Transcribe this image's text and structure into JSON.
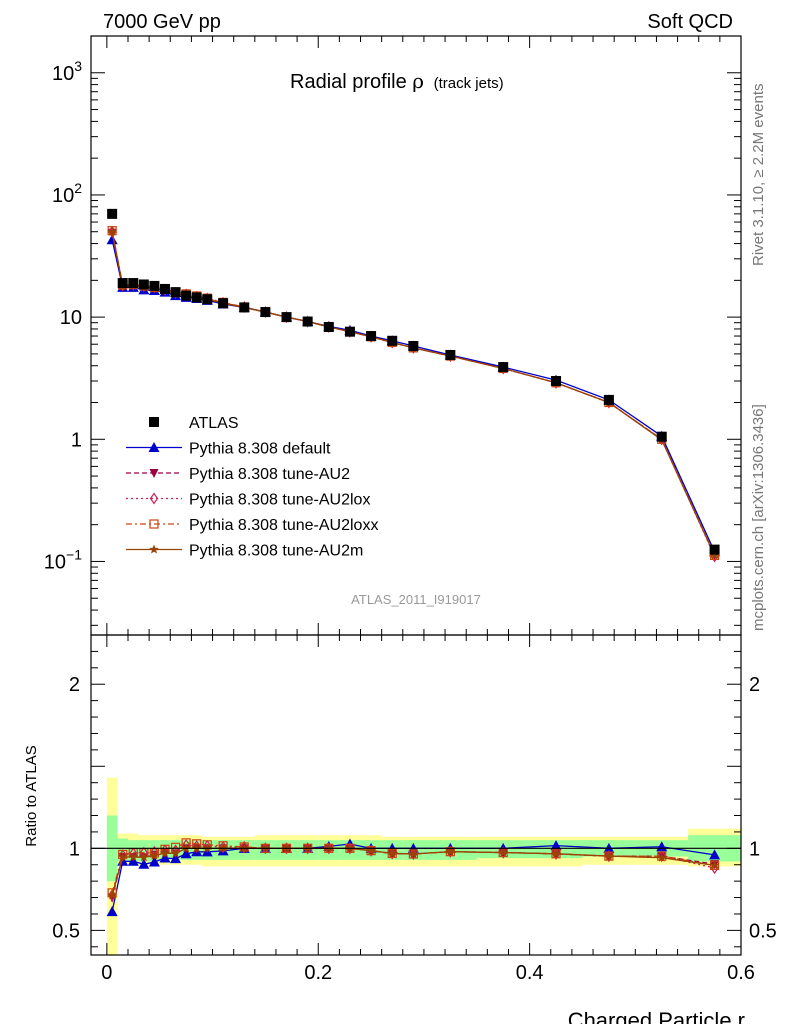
{
  "header": {
    "left": "7000 GeV pp",
    "right": "Soft QCD"
  },
  "side": {
    "rivet": "Rivet 3.1.10, ≥ 2.2M events",
    "mcplots": "mcplots.cern.ch [arXiv:1306.3436]"
  },
  "chart_data": {
    "type": "line",
    "title": "Radial profile",
    "title_symbol": "ρ",
    "title_suffix": "(track jets)",
    "watermark": "ATLAS_2011_I919017",
    "xlabel": "Charged Particle r",
    "xlim": [
      -0.015,
      0.6
    ],
    "x_ticks": [
      "0",
      "0.2",
      "0.4",
      "0.6"
    ],
    "main": {
      "yscale": "log",
      "ylim": [
        0.025,
        2000
      ],
      "y_ticks": [
        "10^-1",
        "1",
        "10",
        "10^2",
        "10^3"
      ]
    },
    "ratio": {
      "ylabel": "Ratio to ATLAS",
      "ylim": [
        0.35,
        2.3
      ],
      "y_ticks": [
        "0.5",
        "1",
        "2"
      ],
      "band_inner": [
        [
          0.0,
          0.01,
          0.8,
          1.2
        ],
        [
          0.01,
          0.02,
          0.92,
          1.06
        ],
        [
          0.02,
          0.03,
          0.92,
          1.05
        ],
        [
          0.03,
          0.04,
          0.92,
          1.05
        ],
        [
          0.04,
          0.05,
          0.92,
          1.05
        ],
        [
          0.05,
          0.06,
          0.93,
          1.05
        ],
        [
          0.06,
          0.07,
          0.93,
          1.05
        ],
        [
          0.07,
          0.08,
          0.93,
          1.05
        ],
        [
          0.08,
          0.09,
          0.93,
          1.05
        ],
        [
          0.09,
          0.1,
          0.93,
          1.05
        ],
        [
          0.1,
          0.12,
          0.93,
          1.05
        ],
        [
          0.12,
          0.14,
          0.93,
          1.05
        ],
        [
          0.14,
          0.16,
          0.93,
          1.05
        ],
        [
          0.16,
          0.18,
          0.93,
          1.05
        ],
        [
          0.18,
          0.2,
          0.93,
          1.05
        ],
        [
          0.2,
          0.22,
          0.93,
          1.05
        ],
        [
          0.22,
          0.24,
          0.93,
          1.05
        ],
        [
          0.24,
          0.26,
          0.93,
          1.05
        ],
        [
          0.26,
          0.28,
          0.93,
          1.05
        ],
        [
          0.28,
          0.3,
          0.93,
          1.05
        ],
        [
          0.3,
          0.35,
          0.93,
          1.05
        ],
        [
          0.35,
          0.4,
          0.94,
          1.05
        ],
        [
          0.4,
          0.45,
          0.94,
          1.05
        ],
        [
          0.45,
          0.5,
          0.95,
          1.05
        ],
        [
          0.5,
          0.55,
          0.95,
          1.05
        ],
        [
          0.55,
          0.6,
          0.92,
          1.08
        ]
      ],
      "band_outer": [
        [
          0.0,
          0.01,
          0.35,
          1.43
        ],
        [
          0.01,
          0.02,
          0.9,
          1.09
        ],
        [
          0.02,
          0.03,
          0.9,
          1.09
        ],
        [
          0.03,
          0.04,
          0.9,
          1.08
        ],
        [
          0.04,
          0.05,
          0.9,
          1.08
        ],
        [
          0.05,
          0.06,
          0.9,
          1.08
        ],
        [
          0.06,
          0.07,
          0.9,
          1.08
        ],
        [
          0.07,
          0.08,
          0.9,
          1.08
        ],
        [
          0.08,
          0.09,
          0.9,
          1.08
        ],
        [
          0.09,
          0.1,
          0.89,
          1.07
        ],
        [
          0.1,
          0.12,
          0.89,
          1.07
        ],
        [
          0.12,
          0.14,
          0.89,
          1.07
        ],
        [
          0.14,
          0.16,
          0.89,
          1.08
        ],
        [
          0.16,
          0.18,
          0.89,
          1.08
        ],
        [
          0.18,
          0.2,
          0.89,
          1.08
        ],
        [
          0.2,
          0.22,
          0.89,
          1.08
        ],
        [
          0.22,
          0.24,
          0.89,
          1.08
        ],
        [
          0.24,
          0.26,
          0.89,
          1.08
        ],
        [
          0.26,
          0.28,
          0.89,
          1.07
        ],
        [
          0.28,
          0.3,
          0.89,
          1.07
        ],
        [
          0.3,
          0.35,
          0.89,
          1.07
        ],
        [
          0.35,
          0.4,
          0.89,
          1.07
        ],
        [
          0.4,
          0.45,
          0.89,
          1.07
        ],
        [
          0.45,
          0.5,
          0.9,
          1.07
        ],
        [
          0.5,
          0.55,
          0.9,
          1.07
        ],
        [
          0.55,
          0.6,
          0.89,
          1.12
        ]
      ]
    },
    "x": [
      0.005,
      0.015,
      0.025,
      0.035,
      0.045,
      0.055,
      0.065,
      0.075,
      0.085,
      0.095,
      0.11,
      0.13,
      0.15,
      0.17,
      0.19,
      0.21,
      0.23,
      0.25,
      0.27,
      0.29,
      0.325,
      0.375,
      0.425,
      0.475,
      0.525,
      0.575
    ],
    "series": [
      {
        "name": "ATLAS",
        "color": "#000000",
        "marker": "square-filled",
        "dash": "none",
        "values": [
          70,
          19,
          19,
          18.5,
          18,
          17,
          16,
          15,
          14.5,
          14,
          13,
          12,
          11,
          10,
          9.2,
          8.3,
          7.6,
          7.0,
          6.4,
          5.8,
          4.9,
          3.9,
          3.0,
          2.1,
          1.05,
          0.125
        ]
      },
      {
        "name": "Pythia 8.308 default",
        "color": "#0000cc",
        "marker": "triangle-up-filled",
        "dash": "none",
        "values": [
          43,
          17.5,
          17.5,
          16.7,
          16.5,
          16,
          15,
          14.5,
          14.2,
          13.7,
          12.8,
          12.0,
          11.0,
          10.0,
          9.2,
          8.4,
          7.8,
          7.0,
          6.4,
          5.8,
          4.9,
          3.9,
          3.05,
          2.1,
          1.06,
          0.12
        ]
      },
      {
        "name": "Pythia 8.308 tune-AU2",
        "color": "#990044",
        "marker": "triangle-down-filled",
        "dash": "5,3",
        "values": [
          49,
          18,
          18,
          17.5,
          17.3,
          16.5,
          15.5,
          15,
          14.5,
          14,
          13,
          12,
          11,
          10,
          9.2,
          8.3,
          7.6,
          6.9,
          6.2,
          5.6,
          4.8,
          3.8,
          2.9,
          2.0,
          1.0,
          0.113
        ]
      },
      {
        "name": "Pythia 8.308 tune-AU2lox",
        "color": "#cc2255",
        "marker": "diamond-open",
        "dash": "2,3",
        "values": [
          50,
          18.2,
          18.4,
          18,
          17.6,
          16.8,
          15.8,
          15.3,
          14.7,
          14.2,
          13.1,
          12.1,
          11,
          10,
          9.2,
          8.3,
          7.6,
          6.9,
          6.2,
          5.6,
          4.8,
          3.8,
          2.9,
          2.0,
          1.0,
          0.11
        ]
      },
      {
        "name": "Pythia 8.308 tune-AU2loxx",
        "color": "#cc4411",
        "marker": "square-open",
        "dash": "6,3,2,3",
        "values": [
          51,
          18.3,
          18.5,
          18,
          17.5,
          16.9,
          16.1,
          15.5,
          14.9,
          14.3,
          13.2,
          12.1,
          11,
          10,
          9.2,
          8.3,
          7.6,
          6.9,
          6.2,
          5.6,
          4.8,
          3.8,
          2.9,
          2.0,
          1.0,
          0.112
        ]
      },
      {
        "name": "Pythia 8.308 tune-AU2m",
        "color": "#994400",
        "marker": "star-filled",
        "dash": "none",
        "values": [
          50,
          18,
          18,
          17.5,
          17.2,
          16.5,
          15.5,
          15,
          14.5,
          14,
          13,
          12,
          11,
          10,
          9.2,
          8.3,
          7.6,
          6.9,
          6.2,
          5.6,
          4.8,
          3.8,
          2.9,
          2.0,
          0.99,
          0.112
        ]
      }
    ]
  }
}
